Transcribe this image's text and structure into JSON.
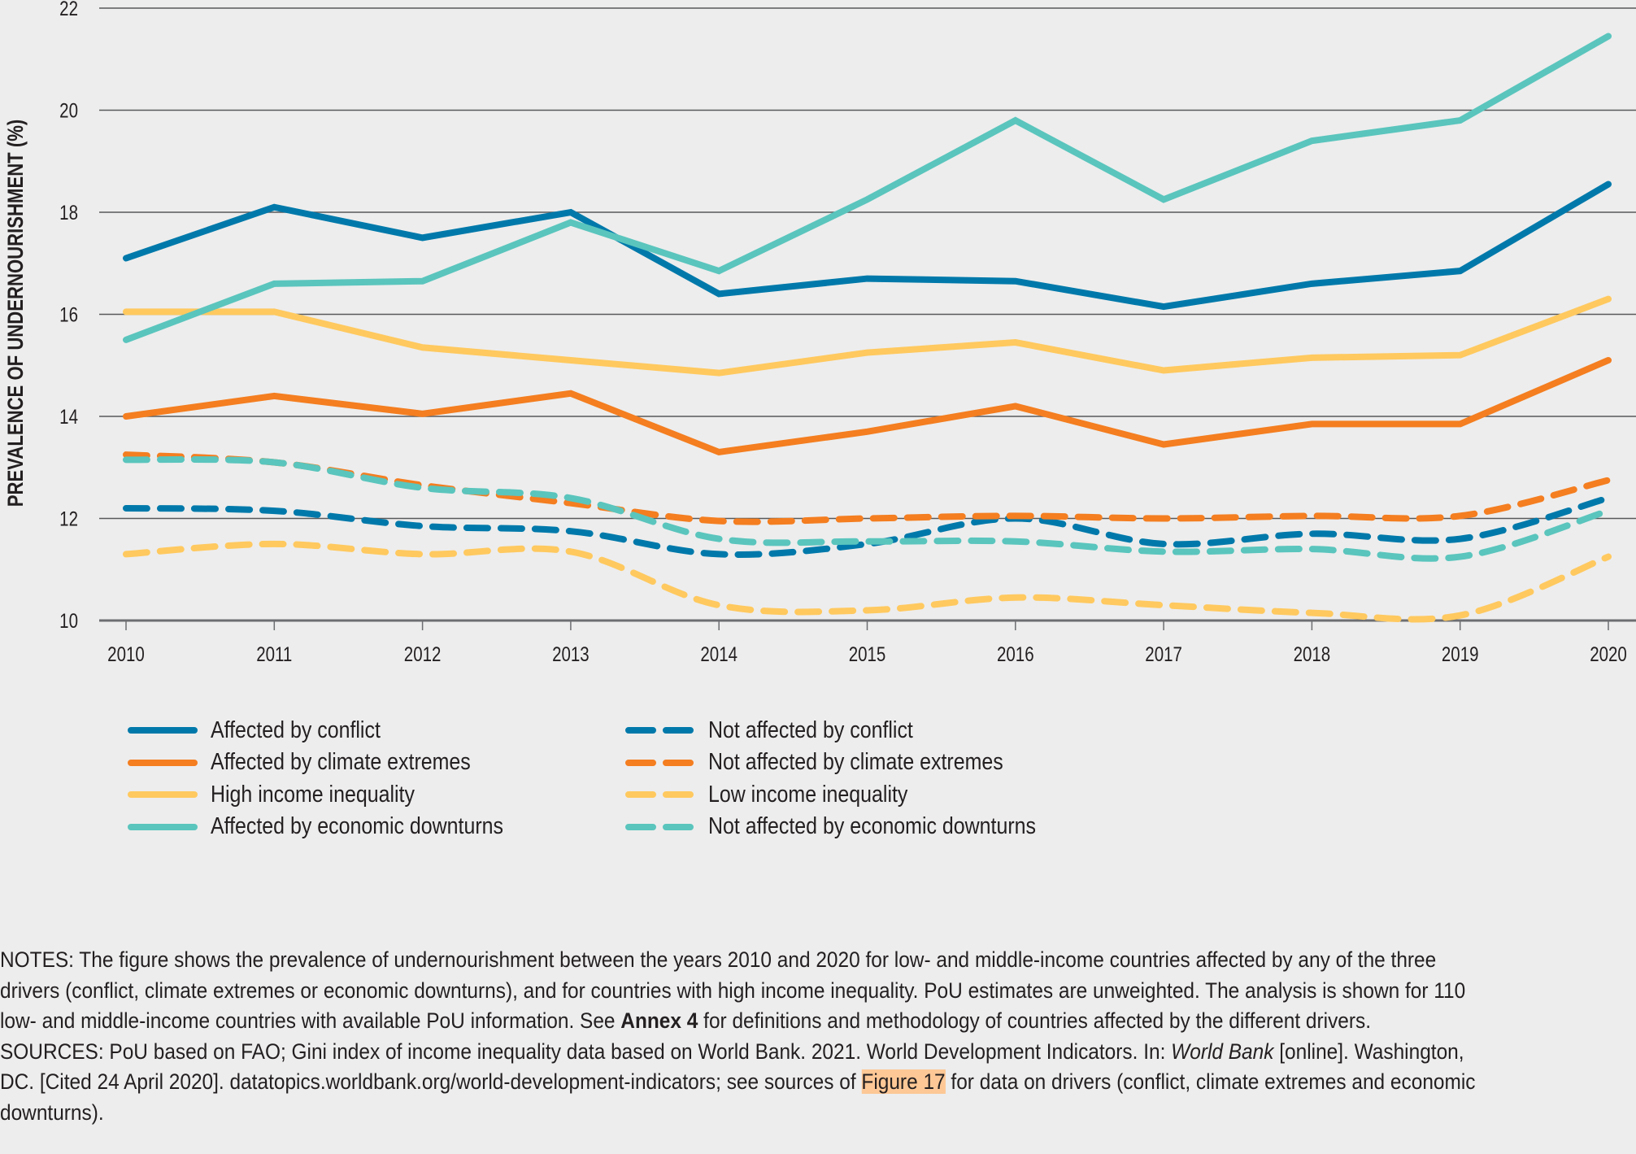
{
  "chart_data": {
    "type": "line",
    "title": "",
    "xlabel": "",
    "ylabel": "PREVALENCE OF UNDERNOURISHMENT (%)",
    "x": [
      2010,
      2011,
      2012,
      2013,
      2014,
      2015,
      2016,
      2017,
      2018,
      2019,
      2020
    ],
    "x_tick_labels": [
      "2010",
      "2011",
      "2012",
      "2013",
      "2014",
      "2015",
      "2016",
      "2017",
      "2018",
      "2019",
      "2020"
    ],
    "ylim": [
      10,
      22
    ],
    "y_ticks": [
      10,
      12,
      14,
      16,
      18,
      20,
      22
    ],
    "y_tick_labels": [
      "10",
      "12",
      "14",
      "16",
      "18",
      "20",
      "22"
    ],
    "grid": true,
    "legend_position": "bottom",
    "series": [
      {
        "name": "Affected by conflict",
        "color": "#0079aa",
        "style": "solid",
        "values": [
          17.1,
          18.1,
          17.5,
          18.0,
          16.4,
          16.7,
          16.65,
          16.15,
          16.6,
          16.85,
          18.55
        ]
      },
      {
        "name": "Affected by climate extremes",
        "color": "#f47e20",
        "style": "solid",
        "values": [
          14.0,
          14.4,
          14.05,
          14.45,
          13.3,
          13.7,
          14.2,
          13.45,
          13.85,
          13.85,
          15.1
        ]
      },
      {
        "name": "High income inequality",
        "color": "#ffc95f",
        "style": "solid",
        "values": [
          16.05,
          16.05,
          15.35,
          15.1,
          14.85,
          15.25,
          15.45,
          14.9,
          15.15,
          15.2,
          16.3
        ]
      },
      {
        "name": "Affected by economic downturns",
        "color": "#5ac5bd",
        "style": "solid",
        "values": [
          15.5,
          16.6,
          16.65,
          17.8,
          16.85,
          18.25,
          19.8,
          18.25,
          19.4,
          19.8,
          21.45
        ]
      },
      {
        "name": "Not affected by conflict",
        "color": "#0079aa",
        "style": "dashed",
        "values": [
          12.2,
          12.15,
          11.85,
          11.75,
          11.3,
          11.5,
          12.0,
          11.5,
          11.7,
          11.6,
          12.4
        ]
      },
      {
        "name": "Not affected by climate extremes",
        "color": "#f47e20",
        "style": "dashed",
        "values": [
          13.25,
          13.1,
          12.65,
          12.3,
          11.95,
          12.0,
          12.05,
          12.0,
          12.05,
          12.05,
          12.75
        ]
      },
      {
        "name": "Low income inequality",
        "color": "#ffc95f",
        "style": "dashed",
        "values": [
          11.3,
          11.5,
          11.3,
          11.35,
          10.3,
          10.2,
          10.45,
          10.3,
          10.15,
          10.1,
          11.25
        ]
      },
      {
        "name": "Not affected by economic downturns",
        "color": "#5ac5bd",
        "style": "dashed",
        "values": [
          13.15,
          13.1,
          12.6,
          12.4,
          11.6,
          11.55,
          11.55,
          11.35,
          11.4,
          11.25,
          12.15
        ]
      }
    ]
  },
  "legend": {
    "items": [
      {
        "label": "Affected by conflict",
        "color": "#0079aa",
        "style": "solid"
      },
      {
        "label": "Affected by climate extremes",
        "color": "#f47e20",
        "style": "solid"
      },
      {
        "label": "High income inequality",
        "color": "#ffc95f",
        "style": "solid"
      },
      {
        "label": "Affected by economic downturns",
        "color": "#5ac5bd",
        "style": "solid"
      },
      {
        "label": "Not affected by conflict",
        "color": "#0079aa",
        "style": "dashed"
      },
      {
        "label": "Not affected by climate extremes",
        "color": "#f47e20",
        "style": "dashed"
      },
      {
        "label": "Low income inequality",
        "color": "#ffc95f",
        "style": "dashed"
      },
      {
        "label": "Not affected by economic downturns",
        "color": "#5ac5bd",
        "style": "dashed"
      }
    ]
  },
  "notes": {
    "notes_prefix": "NOTES: The figure shows the prevalence of undernourishment between the years 2010 and 2020 for low- and middle-income countries affected by any of the three drivers (conflict, climate extremes or economic downturns), and for countries with high income inequality. PoU estimates are unweighted. The analysis is shown for 110 low- and middle-income countries with available PoU information. See ",
    "notes_bold": "Annex 4",
    "notes_suffix": " for definitions and methodology of countries affected by the different drivers.",
    "sources_prefix": "SOURCES: PoU based on FAO; Gini index of income inequality data based on World Bank. 2021. World Development Indicators. In: ",
    "sources_italic": "World Bank",
    "sources_middle": " [online]. Washington, DC. [Cited 24 April 2020]. datatopics.worldbank.org/world-development-indicators; see sources of ",
    "sources_highlight": "Figure 17",
    "sources_suffix": " for data on drivers (conflict, climate extremes and economic downturns)."
  },
  "highlight_color": "#fdc896"
}
